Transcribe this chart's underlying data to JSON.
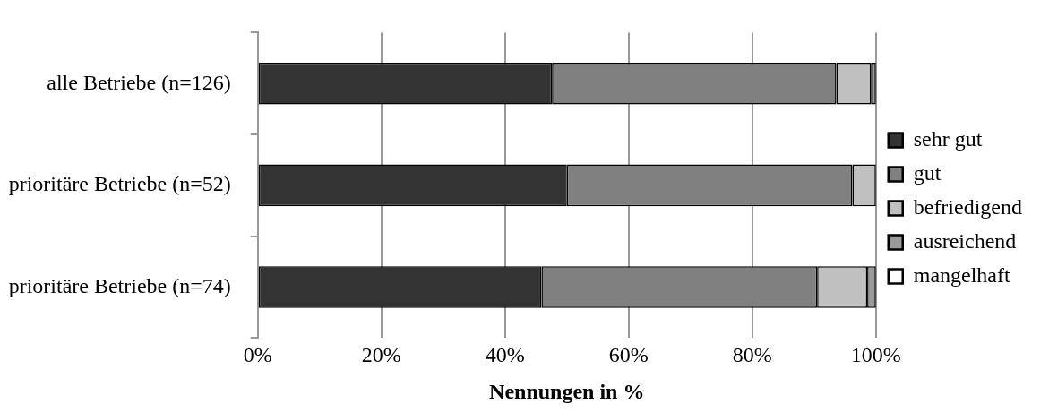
{
  "chart_data": {
    "type": "bar",
    "orientation": "horizontal",
    "stacked": true,
    "xlabel": "Nennungen in %",
    "categories": [
      "alle Betriebe (n=126)",
      "prioritäre Betriebe (n=52)",
      "prioritäre Betriebe (n=74)"
    ],
    "series": [
      {
        "name": "sehr gut",
        "color": "#333333",
        "values": [
          47.6,
          50.0,
          45.9
        ]
      },
      {
        "name": "gut",
        "color": "#808080",
        "values": [
          46.0,
          46.2,
          44.6
        ]
      },
      {
        "name": "befriedigend",
        "color": "#c0c0c0",
        "values": [
          5.6,
          3.8,
          8.1
        ]
      },
      {
        "name": "ausreichend",
        "color": "#9a9a9a",
        "values": [
          0.8,
          0,
          1.4
        ]
      },
      {
        "name": "mangelhaft",
        "color": "#ffffff",
        "values": [
          0,
          0,
          0
        ]
      }
    ],
    "xlim": [
      0,
      100
    ],
    "xticks": [
      {
        "value": 0,
        "label": "0%"
      },
      {
        "value": 20,
        "label": "20%"
      },
      {
        "value": 40,
        "label": "40%"
      },
      {
        "value": 60,
        "label": "60%"
      },
      {
        "value": 80,
        "label": "80%"
      },
      {
        "value": 100,
        "label": "100%"
      }
    ],
    "grid": "x",
    "legend": "right"
  }
}
